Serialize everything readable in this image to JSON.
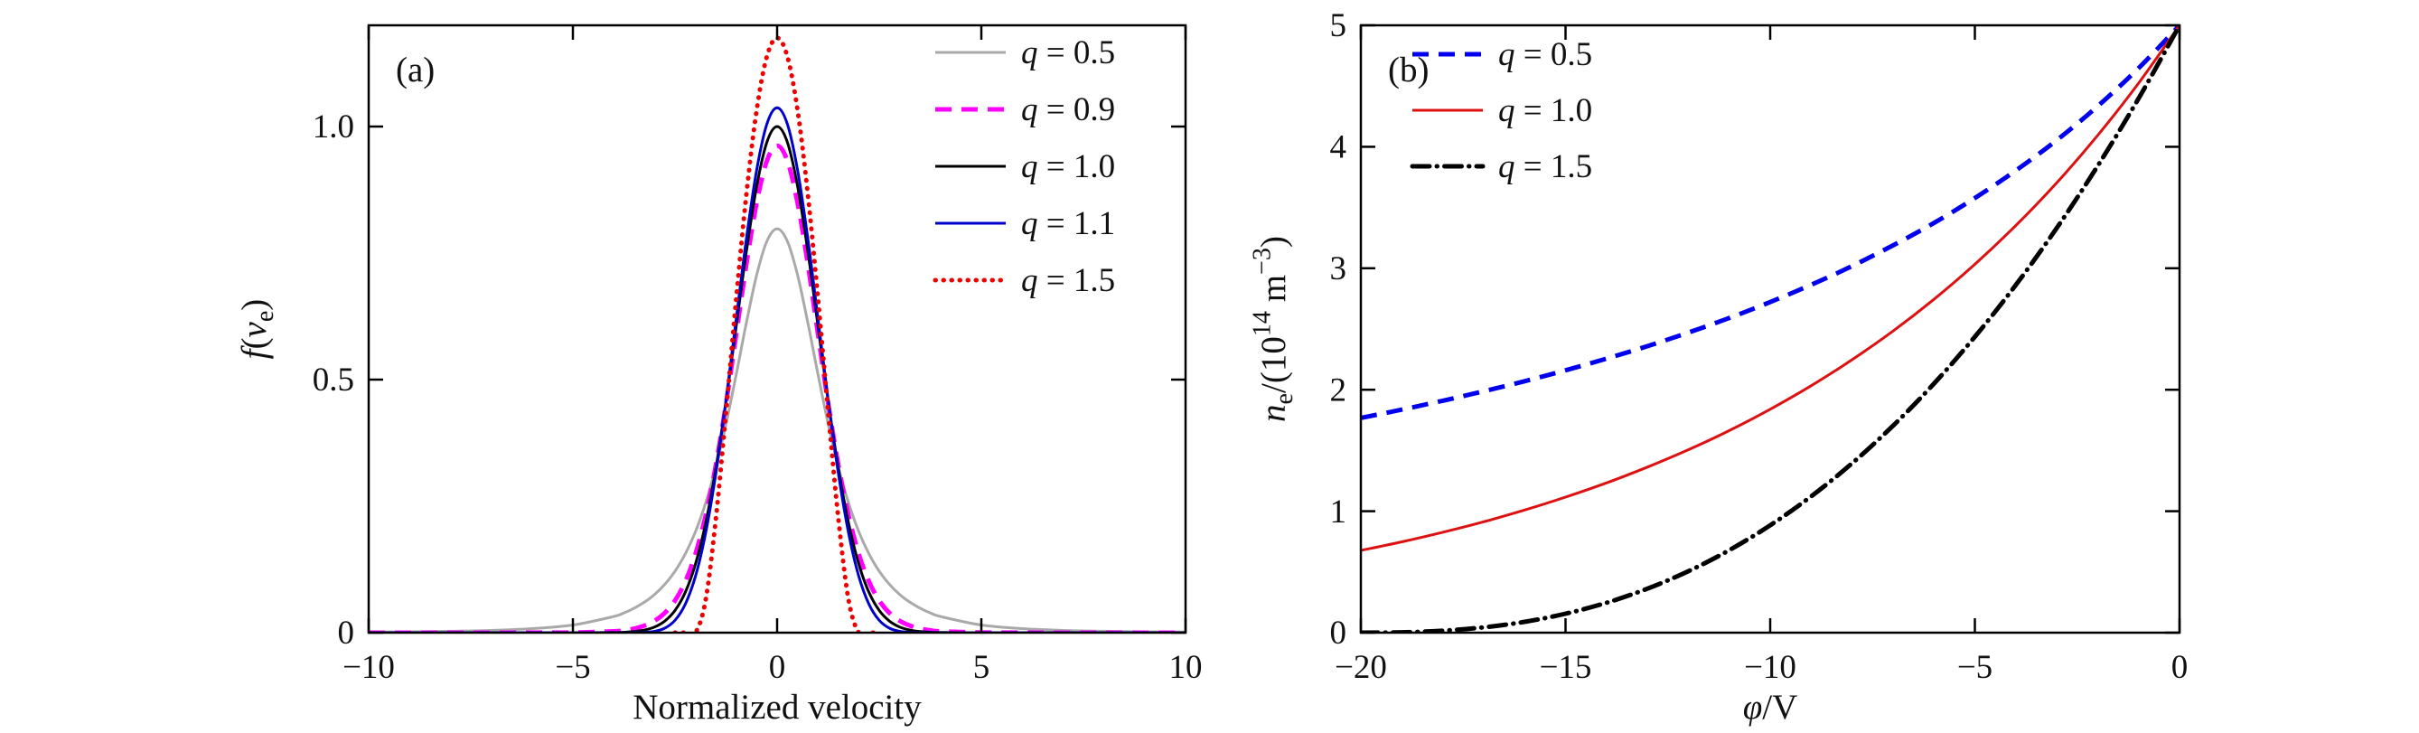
{
  "figure": {
    "background": "#ffffff"
  },
  "chart_data": [
    {
      "type": "line",
      "panel_label": "(a)",
      "xlabel": "Normalized velocity",
      "ylabel": "*f*(*v*_{e})",
      "xlim": [
        -10,
        10
      ],
      "ylim": [
        0,
        1.2
      ],
      "xtick_values": [
        -10,
        -5,
        0,
        5,
        10
      ],
      "xtick_labels": [
        "−10",
        "−5",
        "0",
        "5",
        "10"
      ],
      "ytick_values": [
        0,
        0.5,
        1
      ],
      "ytick_labels": [
        "0",
        "0.5",
        "1.0"
      ],
      "grid": false,
      "legend_position": "top-right",
      "series": [
        {
          "name": "q-0.5",
          "label": "*q* = 0.5",
          "color": "#a9a9a9",
          "style": "solid",
          "width": 3,
          "x": [
            -10,
            -9,
            -8,
            -7,
            -6,
            -5,
            -4,
            -3.75,
            -3.5,
            -3.25,
            -3,
            -2.75,
            -2.5,
            -2.25,
            -2,
            -1.75,
            -1.5,
            -1.25,
            -1,
            -0.75,
            -0.5,
            -0.25,
            0,
            0.25,
            0.5,
            0.75,
            1,
            1.25,
            1.5,
            1.75,
            2,
            2.25,
            2.5,
            2.75,
            3,
            3.25,
            3.5,
            3.75,
            4,
            5,
            6,
            7,
            8,
            9,
            10
          ],
          "y": [
            0.0012,
            0.0018,
            0.0028,
            0.0045,
            0.008,
            0.0152,
            0.0319,
            0.0391,
            0.0484,
            0.0602,
            0.0755,
            0.0955,
            0.1215,
            0.1555,
            0.1995,
            0.256,
            0.3269,
            0.4127,
            0.5107,
            0.6134,
            0.7069,
            0.7736,
            0.798,
            0.7736,
            0.7069,
            0.6134,
            0.5107,
            0.4127,
            0.3269,
            0.256,
            0.1995,
            0.1555,
            0.1215,
            0.0955,
            0.0755,
            0.0602,
            0.0484,
            0.0391,
            0.0319,
            0.0152,
            0.008,
            0.0045,
            0.0028,
            0.0018,
            0.0012
          ]
        },
        {
          "name": "q-0.9",
          "label": "*q* = 0.9",
          "color": "#ff00ff",
          "style": "dashed",
          "width": 5,
          "x": [
            -10,
            -9,
            -8,
            -7,
            -6,
            -5,
            -4,
            -3.75,
            -3.5,
            -3.25,
            -3,
            -2.75,
            -2.5,
            -2.25,
            -2,
            -1.75,
            -1.5,
            -1.25,
            -1,
            -0.75,
            -0.5,
            -0.25,
            0,
            0.25,
            0.5,
            0.75,
            1,
            1.25,
            1.5,
            1.75,
            2,
            2.25,
            2.5,
            2.75,
            3,
            3.25,
            3.5,
            3.75,
            4,
            5,
            6,
            7,
            8,
            9,
            10
          ],
          "y": [
            0,
            0,
            0,
            0,
            0.0001,
            0.0003,
            0.0027,
            0.0047,
            0.0081,
            0.0139,
            0.0234,
            0.0389,
            0.0634,
            0.1008,
            0.1554,
            0.2314,
            0.3313,
            0.4534,
            0.5906,
            0.7292,
            0.8497,
            0.9325,
            0.962,
            0.9325,
            0.8497,
            0.7292,
            0.5906,
            0.4534,
            0.3313,
            0.2314,
            0.1554,
            0.1008,
            0.0634,
            0.0389,
            0.0234,
            0.0139,
            0.0081,
            0.0047,
            0.0027,
            0.0003,
            0.0001,
            0,
            0,
            0,
            0
          ]
        },
        {
          "name": "q-1.0",
          "label": "*q* = 1.0",
          "color": "#000000",
          "style": "solid",
          "width": 3,
          "x": [
            -10,
            -9,
            -8,
            -7,
            -6,
            -5,
            -4,
            -3.75,
            -3.5,
            -3.25,
            -3,
            -2.75,
            -2.5,
            -2.25,
            -2,
            -1.75,
            -1.5,
            -1.25,
            -1,
            -0.75,
            -0.5,
            -0.25,
            0,
            0.25,
            0.5,
            0.75,
            1,
            1.25,
            1.5,
            1.75,
            2,
            2.25,
            2.5,
            2.75,
            3,
            3.25,
            3.5,
            3.75,
            4,
            5,
            6,
            7,
            8,
            9,
            10
          ],
          "y": [
            0,
            0,
            0,
            0,
            0,
            0,
            0.0003,
            0.0009,
            0.0022,
            0.0051,
            0.0111,
            0.0228,
            0.0439,
            0.0795,
            0.1353,
            0.2162,
            0.3247,
            0.4578,
            0.6065,
            0.7548,
            0.8825,
            0.9692,
            1.0,
            0.9692,
            0.8825,
            0.7548,
            0.6065,
            0.4578,
            0.3247,
            0.2162,
            0.1353,
            0.0795,
            0.0439,
            0.0228,
            0.0111,
            0.0051,
            0.0022,
            0.0009,
            0.0003,
            0,
            0,
            0,
            0,
            0,
            0
          ]
        },
        {
          "name": "q-1.1",
          "label": "*q* = 1.1",
          "color": "#0000cd",
          "style": "solid",
          "width": 3,
          "x": [
            -10,
            -9,
            -8,
            -7,
            -6,
            -5,
            -4,
            -3.75,
            -3.5,
            -3.25,
            -3,
            -2.75,
            -2.5,
            -2.25,
            -2,
            -1.75,
            -1.5,
            -1.25,
            -1,
            -0.75,
            -0.5,
            -0.25,
            0,
            0.25,
            0.5,
            0.75,
            1,
            1.25,
            1.5,
            1.75,
            2,
            2.25,
            2.5,
            2.75,
            3,
            3.25,
            3.5,
            3.75,
            4,
            5,
            6,
            7,
            8,
            9,
            10
          ],
          "y": [
            0,
            0,
            0,
            0,
            0,
            0,
            0,
            0,
            0.0001,
            0.0006,
            0.0026,
            0.009,
            0.0245,
            0.056,
            0.1113,
            0.1968,
            0.3144,
            0.4597,
            0.6209,
            0.7796,
            0.9144,
            1.0051,
            1.037,
            1.0051,
            0.9144,
            0.7796,
            0.6209,
            0.4597,
            0.3144,
            0.1968,
            0.1113,
            0.056,
            0.0245,
            0.009,
            0.0026,
            0.0006,
            0.0001,
            0,
            0,
            0,
            0,
            0,
            0,
            0,
            0
          ]
        },
        {
          "name": "q-1.5",
          "label": "*q* = 1.5",
          "color": "#ee0000",
          "style": "dotted",
          "width": 5,
          "x": [
            -2.5,
            -2.25,
            -2,
            -1.75,
            -1.5,
            -1.25,
            -1,
            -0.75,
            -0.5,
            -0.25,
            0,
            0.25,
            0.5,
            0.75,
            1,
            1.25,
            1.5,
            1.75,
            2,
            2.25,
            2.5
          ],
          "y": [
            0,
            0,
            0,
            0.0645,
            0.2249,
            0.4363,
            0.6609,
            0.8678,
            1.0327,
            1.1386,
            1.175,
            1.1386,
            1.0327,
            0.8678,
            0.6609,
            0.4363,
            0.2249,
            0.0645,
            0,
            0,
            0
          ]
        }
      ]
    },
    {
      "type": "line",
      "panel_label": "(b)",
      "xlabel": "*φ*/V",
      "ylabel": "*n*_{e}/(10^{14} m^{−3})",
      "xlim": [
        -20,
        0
      ],
      "ylim": [
        0,
        5
      ],
      "xtick_values": [
        -20,
        -15,
        -10,
        -5,
        0
      ],
      "xtick_labels": [
        "−20",
        "−15",
        "−10",
        "−5",
        "0"
      ],
      "ytick_values": [
        0,
        1,
        2,
        3,
        4,
        5
      ],
      "ytick_labels": [
        "0",
        "1",
        "2",
        "3",
        "4",
        "5"
      ],
      "grid": false,
      "legend_position": "top-left",
      "series": [
        {
          "name": "q-0.5",
          "label": "*q* = 0.5",
          "color": "#0000ee",
          "style": "dashed",
          "width": 5,
          "x": [
            -20,
            -19,
            -18,
            -17,
            -16,
            -15,
            -14,
            -13,
            -12,
            -11,
            -10,
            -9,
            -8,
            -7,
            -6,
            -5,
            -4,
            -3,
            -2,
            -1,
            0
          ],
          "y": [
            1.768,
            1.836,
            1.909,
            1.987,
            2.07,
            2.16,
            2.256,
            2.359,
            2.47,
            2.591,
            2.722,
            2.864,
            3.018,
            3.188,
            3.373,
            3.578,
            3.804,
            4.054,
            4.334,
            4.647,
            5
          ]
        },
        {
          "name": "q-1.0",
          "label": "*q* = 1.0",
          "color": "#dd1111",
          "style": "solid",
          "width": 3,
          "x": [
            -20,
            -19,
            -18,
            -17,
            -16,
            -15,
            -14,
            -13,
            -12,
            -11,
            -10,
            -9,
            -8,
            -7,
            -6,
            -5,
            -4,
            -3,
            -2,
            -1,
            0
          ],
          "y": [
            0.677,
            0.748,
            0.827,
            0.913,
            1.01,
            1.116,
            1.233,
            1.363,
            1.506,
            1.664,
            1.839,
            2.033,
            2.247,
            2.483,
            2.744,
            3.033,
            3.352,
            3.704,
            4.094,
            4.524,
            5
          ]
        },
        {
          "name": "q-1.5",
          "label": "*q* = 1.5",
          "color": "#000000",
          "style": "dashdot",
          "width": 5,
          "x": [
            -20,
            -19,
            -18,
            -17,
            -16,
            -15,
            -14,
            -13,
            -12,
            -11,
            -10,
            -9,
            -8,
            -7,
            -6,
            -5,
            -4,
            -3,
            -2,
            -1,
            0
          ],
          "y": [
            0,
            0.003,
            0.016,
            0.044,
            0.089,
            0.156,
            0.246,
            0.362,
            0.506,
            0.679,
            0.884,
            1.122,
            1.394,
            1.703,
            2.05,
            2.436,
            2.862,
            3.331,
            3.842,
            4.398,
            5
          ]
        }
      ]
    }
  ]
}
